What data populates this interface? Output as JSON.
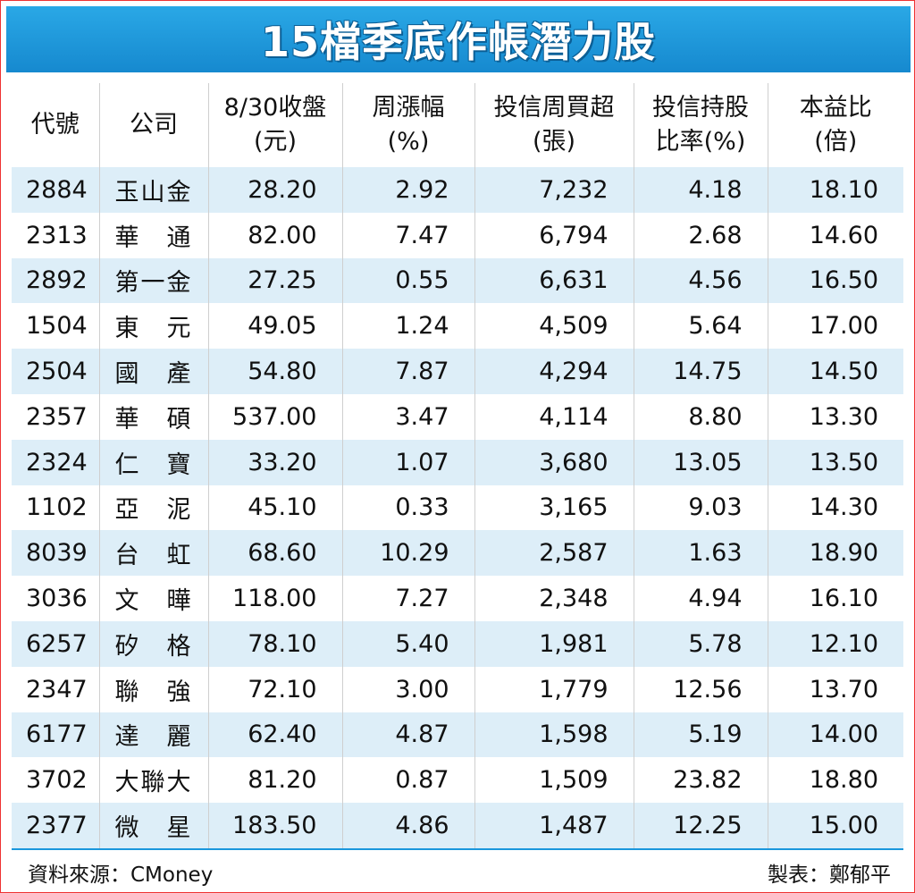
{
  "title": "15檔季底作帳潛力股",
  "headers": [
    {
      "line1": "代號",
      "line2": ""
    },
    {
      "line1": "公司",
      "line2": ""
    },
    {
      "line1": "8/30收盤",
      "line2": "(元)"
    },
    {
      "line1": "周漲幅",
      "line2": "(%)"
    },
    {
      "line1": "投信周買超",
      "line2": "(張)"
    },
    {
      "line1": "投信持股",
      "line2": "比率(%)"
    },
    {
      "line1": "本益比",
      "line2": "(倍)"
    }
  ],
  "rows": [
    [
      "2884",
      "玉山金",
      "28.20",
      "2.92",
      "7,232",
      "4.18",
      "18.10"
    ],
    [
      "2313",
      "華　通",
      "82.00",
      "7.47",
      "6,794",
      "2.68",
      "14.60"
    ],
    [
      "2892",
      "第一金",
      "27.25",
      "0.55",
      "6,631",
      "4.56",
      "16.50"
    ],
    [
      "1504",
      "東　元",
      "49.05",
      "1.24",
      "4,509",
      "5.64",
      "17.00"
    ],
    [
      "2504",
      "國　產",
      "54.80",
      "7.87",
      "4,294",
      "14.75",
      "14.50"
    ],
    [
      "2357",
      "華　碩",
      "537.00",
      "3.47",
      "4,114",
      "8.80",
      "13.30"
    ],
    [
      "2324",
      "仁　寶",
      "33.20",
      "1.07",
      "3,680",
      "13.05",
      "13.50"
    ],
    [
      "1102",
      "亞　泥",
      "45.10",
      "0.33",
      "3,165",
      "9.03",
      "14.30"
    ],
    [
      "8039",
      "台　虹",
      "68.60",
      "10.29",
      "2,587",
      "1.63",
      "18.90"
    ],
    [
      "3036",
      "文　曄",
      "118.00",
      "7.27",
      "2,348",
      "4.94",
      "16.10"
    ],
    [
      "6257",
      "矽　格",
      "78.10",
      "5.40",
      "1,981",
      "5.78",
      "12.10"
    ],
    [
      "2347",
      "聯　強",
      "72.10",
      "3.00",
      "1,779",
      "12.56",
      "13.70"
    ],
    [
      "6177",
      "達　麗",
      "62.40",
      "4.87",
      "1,598",
      "5.19",
      "14.00"
    ],
    [
      "3702",
      "大聯大",
      "81.20",
      "0.87",
      "1,509",
      "23.82",
      "18.80"
    ],
    [
      "2377",
      "微　星",
      "183.50",
      "4.86",
      "1,487",
      "12.25",
      "15.00"
    ]
  ],
  "footer": {
    "source": "資料來源：CMoney",
    "maker": "製表：鄭郁平"
  }
}
